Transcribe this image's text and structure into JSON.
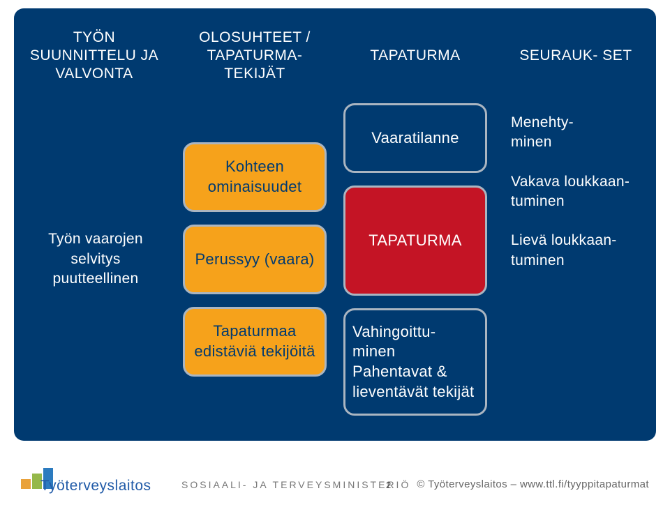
{
  "diagram": {
    "bg": "#003a70",
    "border": "#aab5c1",
    "text_color": "#ffffff",
    "columns": [
      {
        "id": "col1",
        "header": "TYÖN SUUNNITTELU JA VALVONTA",
        "body": {
          "text": "Työn vaarojen selvitys puutteellinen"
        }
      },
      {
        "id": "col2",
        "header": "OLOSUHTEET / TAPATURMA- TEKIJÄT",
        "chips": [
          {
            "label": "Kohteen ominaisuudet",
            "bg": "#f6a21b",
            "txt": "#003a70"
          },
          {
            "label": "Perussyy (vaara)",
            "bg": "#f6a21b",
            "txt": "#003a70"
          },
          {
            "label": "Tapaturmaa edistäviä tekijöitä",
            "bg": "#f6a21b",
            "txt": "#003a70"
          }
        ]
      },
      {
        "id": "col3",
        "header": "TAPATURMA",
        "chips": [
          {
            "label": "Vaaratilanne",
            "bg": "#003a70",
            "txt": "#ffffff",
            "tall": false
          },
          {
            "label": "TAPATURMA",
            "bg": "#c41425",
            "txt": "#ffffff",
            "tall": true
          },
          {
            "label": "Vahingoittu- minen Pahentavat & lieventävät tekijät",
            "bg": "#003a70",
            "txt": "#ffffff",
            "tall": true,
            "align": "left"
          }
        ]
      },
      {
        "id": "col4",
        "header": "SEURAUK- SET",
        "texts": [
          "Menehty- minen",
          "Vakava loukkaan- tuminen",
          "Lievä loukkaan- tuminen"
        ]
      }
    ]
  },
  "footer": {
    "logo": {
      "word": "Työterveyslaitos",
      "color": "#215ba8",
      "squares": [
        {
          "w": 14,
          "h": 14,
          "c": "#e9a23b"
        },
        {
          "w": 14,
          "h": 22,
          "c": "#95b84a"
        },
        {
          "w": 14,
          "h": 30,
          "c": "#2c7bbf"
        }
      ]
    },
    "ministry": "SOSIAALI- JA TERVEYSMINISTERIÖ",
    "page_number": "2",
    "credits_left": "© Työterveyslaitos",
    "credits_sep": "  –  ",
    "credits_right": "www.ttl.fi/tyyppitapaturmat"
  }
}
